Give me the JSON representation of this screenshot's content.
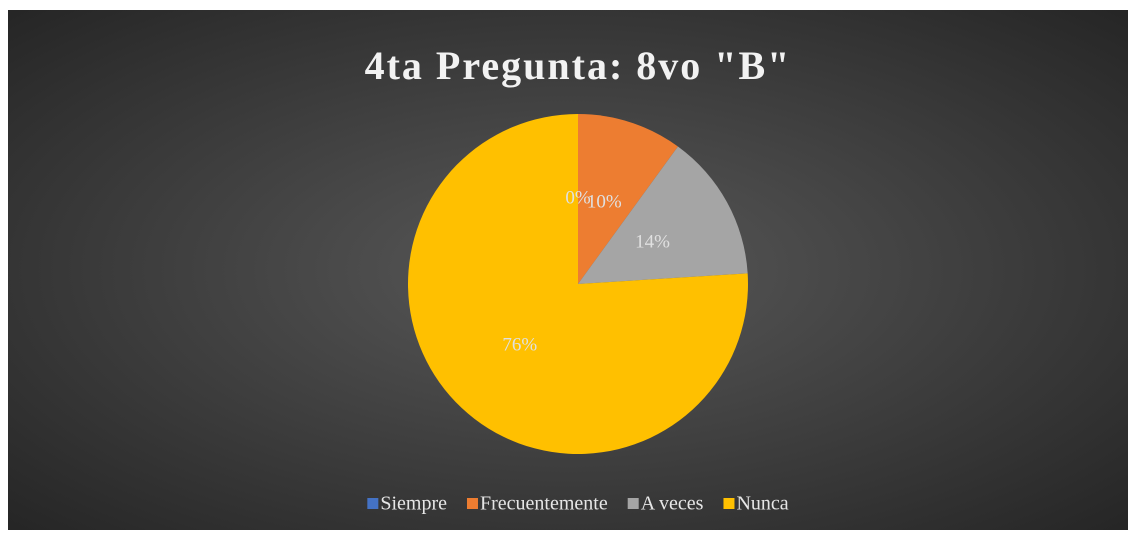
{
  "chart_data": {
    "type": "pie",
    "title": "4ta Pregunta: 8vo \"B\"",
    "categories": [
      "Siempre",
      "Frecuentemente",
      "A veces",
      "Nunca"
    ],
    "values": [
      0,
      10,
      14,
      76
    ],
    "value_labels": [
      "0%",
      "10%",
      "14%",
      "76%"
    ],
    "colors": [
      "#4472c4",
      "#ed7d31",
      "#a5a5a5",
      "#ffc000"
    ],
    "legend": "bottom"
  }
}
